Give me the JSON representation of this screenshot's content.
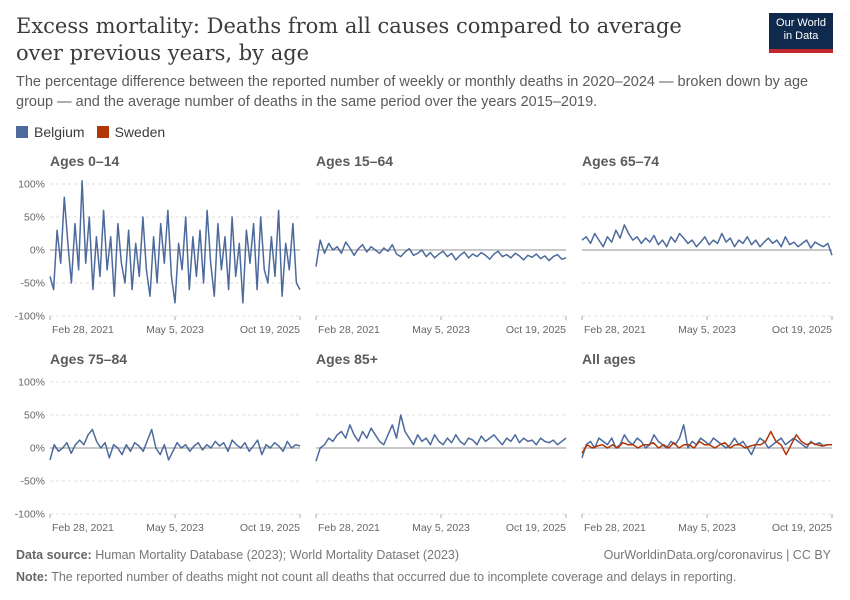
{
  "header": {
    "title": "Excess mortality: Deaths from all causes compared to average over previous years, by age",
    "subtitle": "The percentage difference between the reported number of weekly or monthly deaths in 2020–2024 — broken down by age group — and the average number of deaths in the same period over the years 2015–2019.",
    "logo_line1": "Our World",
    "logo_line2": "in Data"
  },
  "legend": [
    {
      "name": "Belgium",
      "color": "#4c6a9c"
    },
    {
      "name": "Sweden",
      "color": "#b13507"
    }
  ],
  "footer": {
    "source_label": "Data source:",
    "source_text": "Human Mortality Database (2023); World Mortality Dataset (2023)",
    "right_text": "OurWorldinData.org/coronavirus | CC BY",
    "note_label": "Note:",
    "note_text": "The reported number of deaths might not count all deaths that occurred due to incomplete coverage and delays in reporting."
  },
  "chart_data": {
    "type": "line",
    "ylim": [
      -100,
      100
    ],
    "yticks": [
      100,
      50,
      0,
      -50,
      -100
    ],
    "ytick_labels": [
      "100%",
      "50%",
      "0%",
      "-50%",
      "-100%"
    ],
    "x_range": [
      "2020-01-05",
      "2025-10-19"
    ],
    "xtick_labels": [
      "Feb 28, 2021",
      "May 5, 2023",
      "Oct 19, 2025"
    ],
    "panels": [
      {
        "title": "Ages 0–14",
        "series": [
          {
            "name": "Belgium",
            "values": [
              -40,
              -60,
              30,
              -20,
              80,
              10,
              -50,
              40,
              -30,
              105,
              -20,
              50,
              -60,
              20,
              -40,
              60,
              -30,
              20,
              -70,
              40,
              -20,
              -50,
              30,
              -60,
              10,
              -40,
              50,
              -30,
              -70,
              20,
              -50,
              40,
              -20,
              60,
              -40,
              -80,
              10,
              -30,
              50,
              -60,
              20,
              -40,
              30,
              -50,
              60,
              -20,
              -70,
              40,
              -30,
              20,
              -60,
              50,
              -40,
              10,
              -80,
              30,
              -20,
              40,
              -60,
              50,
              -30,
              -50,
              20,
              -40,
              60,
              -70,
              10,
              -30,
              40,
              -50,
              -60
            ]
          }
        ]
      },
      {
        "title": "Ages 15–64",
        "series": [
          {
            "name": "Belgium",
            "values": [
              -25,
              15,
              -5,
              10,
              0,
              5,
              -5,
              12,
              3,
              -8,
              2,
              8,
              -3,
              5,
              0,
              -5,
              3,
              -2,
              8,
              -6,
              -10,
              -3,
              2,
              -8,
              -5,
              0,
              -10,
              -4,
              -12,
              -6,
              -2,
              -10,
              -5,
              -15,
              -8,
              -3,
              -12,
              -6,
              -10,
              -4,
              -8,
              -14,
              -6,
              -2,
              -10,
              -7,
              -12,
              -5,
              -9,
              -15,
              -8,
              -11,
              -6,
              -13,
              -9,
              -16,
              -10,
              -7,
              -14,
              -12
            ]
          }
        ]
      },
      {
        "title": "Ages 65–74",
        "series": [
          {
            "name": "Belgium",
            "values": [
              15,
              20,
              10,
              25,
              15,
              5,
              20,
              12,
              30,
              18,
              38,
              25,
              15,
              20,
              10,
              18,
              12,
              22,
              8,
              15,
              5,
              20,
              12,
              25,
              18,
              10,
              15,
              5,
              12,
              20,
              8,
              15,
              10,
              25,
              12,
              18,
              5,
              15,
              10,
              20,
              8,
              15,
              5,
              12,
              18,
              10,
              15,
              5,
              20,
              8,
              12,
              5,
              10,
              15,
              3,
              12,
              8,
              5,
              10,
              -8
            ]
          }
        ]
      },
      {
        "title": "Ages 75–84",
        "series": [
          {
            "name": "Belgium",
            "values": [
              -18,
              5,
              -5,
              0,
              8,
              -8,
              5,
              12,
              5,
              20,
              28,
              10,
              0,
              8,
              -15,
              5,
              0,
              -10,
              5,
              -5,
              8,
              3,
              -5,
              12,
              28,
              0,
              -10,
              5,
              -18,
              -5,
              8,
              0,
              5,
              -5,
              3,
              8,
              -3,
              5,
              0,
              10,
              3,
              8,
              -5,
              12,
              5,
              0,
              8,
              -5,
              3,
              12,
              -10,
              5,
              0,
              8,
              3,
              -5,
              10,
              0,
              5,
              3
            ]
          }
        ]
      },
      {
        "title": "Ages 85+",
        "series": [
          {
            "name": "Belgium",
            "values": [
              -20,
              0,
              5,
              15,
              10,
              20,
              25,
              15,
              35,
              20,
              10,
              25,
              15,
              30,
              20,
              10,
              5,
              20,
              35,
              15,
              50,
              25,
              15,
              5,
              20,
              10,
              15,
              5,
              20,
              10,
              5,
              15,
              8,
              20,
              10,
              5,
              15,
              12,
              5,
              18,
              10,
              15,
              20,
              12,
              5,
              15,
              10,
              20,
              8,
              15,
              10,
              12,
              5,
              15,
              10,
              8,
              12,
              5,
              10,
              15
            ]
          }
        ]
      },
      {
        "title": "All ages",
        "series": [
          {
            "name": "Belgium",
            "values": [
              -15,
              5,
              10,
              0,
              15,
              10,
              5,
              15,
              0,
              5,
              20,
              10,
              5,
              15,
              10,
              0,
              5,
              20,
              10,
              5,
              0,
              10,
              5,
              15,
              35,
              0,
              10,
              5,
              15,
              10,
              5,
              15,
              10,
              5,
              0,
              5,
              15,
              5,
              10,
              0,
              -10,
              5,
              15,
              10,
              0,
              5,
              10,
              15,
              5,
              10,
              15,
              10,
              5,
              0,
              10,
              5,
              8,
              3,
              5,
              5
            ]
          },
          {
            "name": "Sweden",
            "values": [
              -8,
              5,
              0,
              3,
              5,
              0,
              5,
              0,
              8,
              5,
              5,
              0,
              5,
              5,
              8,
              0,
              5,
              0,
              8,
              0,
              5,
              5,
              0,
              10,
              5,
              5,
              0,
              5,
              8,
              0,
              5,
              5,
              0,
              3,
              5,
              5,
              10,
              25,
              10,
              5,
              -10,
              5,
              20,
              10,
              5,
              8,
              5,
              3,
              5,
              5
            ]
          }
        ]
      }
    ]
  }
}
